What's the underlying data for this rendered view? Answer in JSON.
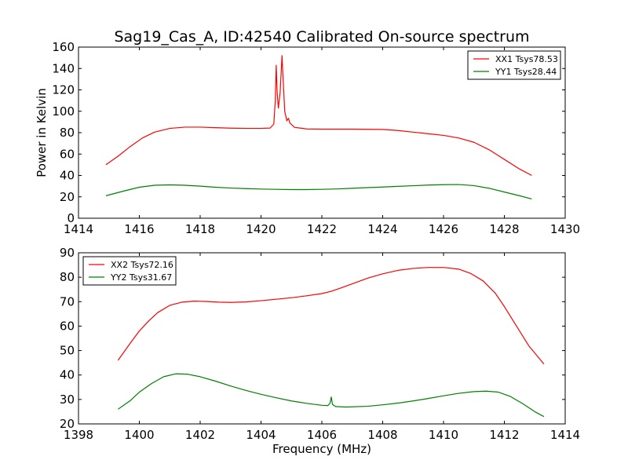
{
  "figure": {
    "title": "Sag19_Cas_A, ID:42540 Calibrated On-source spectrum"
  },
  "chart_data": [
    {
      "type": "line",
      "title": "Sag19_Cas_A, ID:42540 Calibrated On-source spectrum",
      "xlabel": "",
      "ylabel": "Power in Kelvin",
      "xlim": [
        1414,
        1430
      ],
      "ylim": [
        0,
        160
      ],
      "xticks": [
        1414,
        1416,
        1418,
        1420,
        1422,
        1424,
        1426,
        1428,
        1430
      ],
      "yticks": [
        0,
        20,
        40,
        60,
        80,
        100,
        120,
        140,
        160
      ],
      "grid": false,
      "legend_position": "top-right",
      "series": [
        {
          "name": "XX1 Tsys78.53",
          "color": "#ff0000",
          "points": [
            [
              1414.9,
              50
            ],
            [
              1415.3,
              58
            ],
            [
              1415.7,
              67
            ],
            [
              1416.1,
              75
            ],
            [
              1416.5,
              80.5
            ],
            [
              1417.0,
              84
            ],
            [
              1417.5,
              85.2
            ],
            [
              1418.0,
              85.2
            ],
            [
              1418.5,
              84.7
            ],
            [
              1419.0,
              84.2
            ],
            [
              1419.5,
              84.0
            ],
            [
              1420.0,
              84.0
            ],
            [
              1420.3,
              84.3
            ],
            [
              1420.42,
              88
            ],
            [
              1420.47,
              110
            ],
            [
              1420.5,
              143
            ],
            [
              1420.53,
              118
            ],
            [
              1420.57,
              103
            ],
            [
              1420.63,
              118
            ],
            [
              1420.69,
              152
            ],
            [
              1420.73,
              128
            ],
            [
              1420.78,
              100
            ],
            [
              1420.85,
              91
            ],
            [
              1420.9,
              93.5
            ],
            [
              1420.95,
              89
            ],
            [
              1421.1,
              85
            ],
            [
              1421.5,
              83.5
            ],
            [
              1422.0,
              83.3
            ],
            [
              1423.0,
              83.3
            ],
            [
              1424.0,
              83.0
            ],
            [
              1424.5,
              82.0
            ],
            [
              1425.0,
              80.5
            ],
            [
              1425.5,
              79.0
            ],
            [
              1426.0,
              77.5
            ],
            [
              1426.5,
              75
            ],
            [
              1427.0,
              71
            ],
            [
              1427.5,
              64
            ],
            [
              1428.0,
              55
            ],
            [
              1428.5,
              46
            ],
            [
              1428.9,
              40
            ]
          ]
        },
        {
          "name": "YY1 Tsys28.44",
          "color": "#008000",
          "points": [
            [
              1414.9,
              21
            ],
            [
              1415.5,
              25.5
            ],
            [
              1416.0,
              29
            ],
            [
              1416.5,
              30.8
            ],
            [
              1417.0,
              31.2
            ],
            [
              1417.5,
              30.8
            ],
            [
              1418.0,
              30.0
            ],
            [
              1418.5,
              29.0
            ],
            [
              1419.0,
              28.2
            ],
            [
              1419.5,
              27.7
            ],
            [
              1420.0,
              27.3
            ],
            [
              1420.5,
              27.0
            ],
            [
              1421.0,
              26.8
            ],
            [
              1421.5,
              26.8
            ],
            [
              1422.0,
              27.0
            ],
            [
              1422.5,
              27.4
            ],
            [
              1423.0,
              28.0
            ],
            [
              1423.5,
              28.6
            ],
            [
              1424.0,
              29.2
            ],
            [
              1424.5,
              29.8
            ],
            [
              1425.0,
              30.4
            ],
            [
              1425.5,
              31.0
            ],
            [
              1426.0,
              31.4
            ],
            [
              1426.5,
              31.5
            ],
            [
              1427.0,
              30.5
            ],
            [
              1427.5,
              28.0
            ],
            [
              1428.0,
              24.5
            ],
            [
              1428.5,
              21.0
            ],
            [
              1428.9,
              18
            ]
          ]
        }
      ]
    },
    {
      "type": "line",
      "title": "",
      "xlabel": "Frequency (MHz)",
      "ylabel": "",
      "xlim": [
        1398,
        1414
      ],
      "ylim": [
        20,
        90
      ],
      "xticks": [
        1398,
        1400,
        1402,
        1404,
        1406,
        1408,
        1410,
        1412,
        1414
      ],
      "yticks": [
        20,
        30,
        40,
        50,
        60,
        70,
        80,
        90
      ],
      "grid": false,
      "legend_position": "top-left",
      "series": [
        {
          "name": "XX2 Tsys72.16",
          "color": "#ff0000",
          "points": [
            [
              1399.3,
              46
            ],
            [
              1399.7,
              53
            ],
            [
              1400.0,
              58
            ],
            [
              1400.3,
              62
            ],
            [
              1400.6,
              65.5
            ],
            [
              1401.0,
              68.5
            ],
            [
              1401.4,
              69.8
            ],
            [
              1401.8,
              70.2
            ],
            [
              1402.2,
              70.1
            ],
            [
              1402.6,
              69.8
            ],
            [
              1403.0,
              69.7
            ],
            [
              1403.5,
              69.9
            ],
            [
              1404.0,
              70.4
            ],
            [
              1404.5,
              71.0
            ],
            [
              1405.0,
              71.6
            ],
            [
              1405.5,
              72.4
            ],
            [
              1406.0,
              73.3
            ],
            [
              1406.3,
              74.2
            ],
            [
              1406.6,
              75.5
            ],
            [
              1407.0,
              77.3
            ],
            [
              1407.5,
              79.6
            ],
            [
              1408.0,
              81.4
            ],
            [
              1408.5,
              82.8
            ],
            [
              1409.0,
              83.6
            ],
            [
              1409.5,
              84.0
            ],
            [
              1410.0,
              84.0
            ],
            [
              1410.5,
              83.3
            ],
            [
              1410.9,
              81.5
            ],
            [
              1411.3,
              78.5
            ],
            [
              1411.7,
              73.5
            ],
            [
              1412.0,
              68
            ],
            [
              1412.4,
              60
            ],
            [
              1412.8,
              52
            ],
            [
              1413.3,
              44.5
            ]
          ]
        },
        {
          "name": "YY2 Tsys31.67",
          "color": "#008000",
          "points": [
            [
              1399.3,
              26
            ],
            [
              1399.7,
              29.5
            ],
            [
              1400.0,
              33
            ],
            [
              1400.4,
              36.5
            ],
            [
              1400.8,
              39.3
            ],
            [
              1401.2,
              40.5
            ],
            [
              1401.6,
              40.3
            ],
            [
              1402.0,
              39.3
            ],
            [
              1402.5,
              37.5
            ],
            [
              1403.0,
              35.5
            ],
            [
              1403.5,
              33.7
            ],
            [
              1404.0,
              32.1
            ],
            [
              1404.5,
              30.7
            ],
            [
              1405.0,
              29.4
            ],
            [
              1405.5,
              28.4
            ],
            [
              1406.0,
              27.6
            ],
            [
              1406.2,
              27.5
            ],
            [
              1406.27,
              28.5
            ],
            [
              1406.31,
              31.0
            ],
            [
              1406.35,
              28.0
            ],
            [
              1406.45,
              27.1
            ],
            [
              1406.8,
              26.9
            ],
            [
              1407.5,
              27.2
            ],
            [
              1408.0,
              27.8
            ],
            [
              1408.5,
              28.5
            ],
            [
              1409.0,
              29.4
            ],
            [
              1409.5,
              30.4
            ],
            [
              1410.0,
              31.5
            ],
            [
              1410.5,
              32.5
            ],
            [
              1411.0,
              33.2
            ],
            [
              1411.4,
              33.4
            ],
            [
              1411.8,
              33.0
            ],
            [
              1412.2,
              31.2
            ],
            [
              1412.6,
              28.3
            ],
            [
              1413.0,
              25.0
            ],
            [
              1413.3,
              23
            ]
          ]
        }
      ]
    }
  ]
}
